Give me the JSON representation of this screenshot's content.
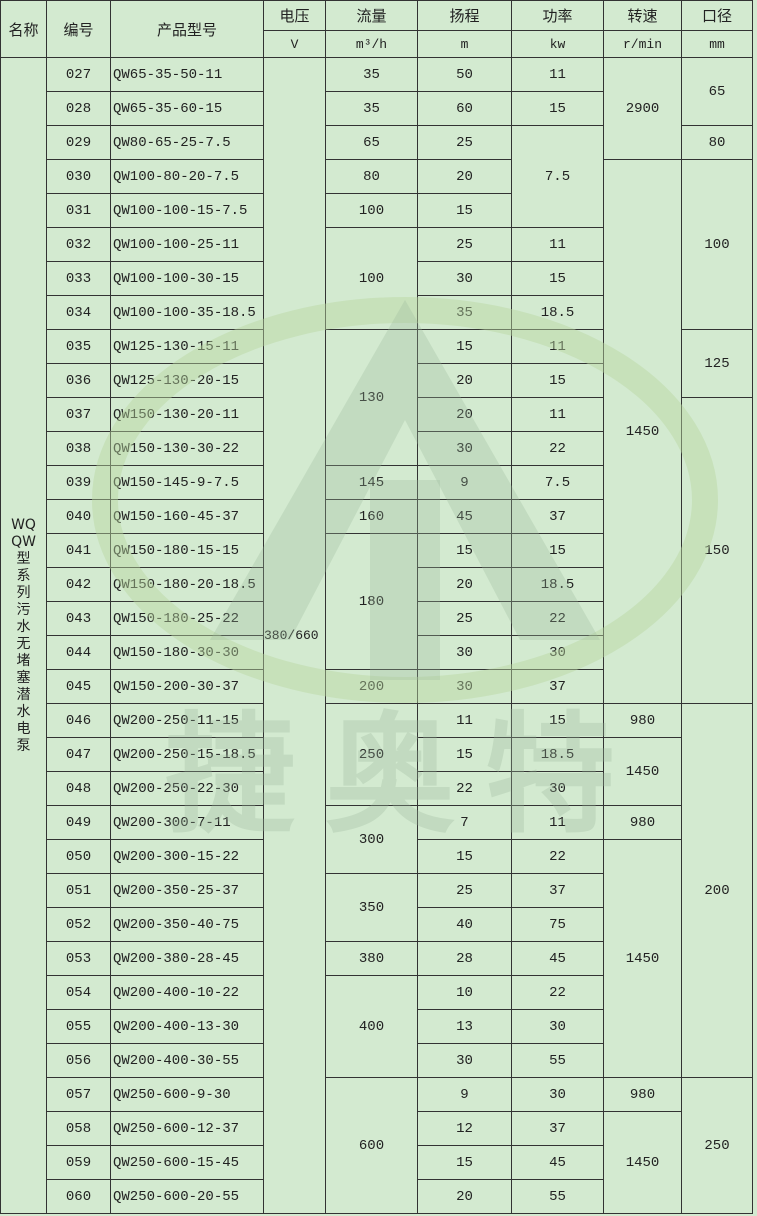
{
  "headers": {
    "name": "名称",
    "no": "编号",
    "model": "产品型号",
    "voltage": "电压",
    "flow": "流量",
    "head": "扬程",
    "power": "功率",
    "speed": "转速",
    "diameter": "口径"
  },
  "units": {
    "voltage": "V",
    "flow": "m³/h",
    "head": "m",
    "power": "kw",
    "speed": "r/min",
    "diameter": "mm"
  },
  "series_name": [
    "WQ",
    "QW",
    "型",
    "系",
    "列",
    "污",
    "水",
    "无",
    "堵",
    "塞",
    "潜",
    "水",
    "电",
    "泵"
  ],
  "voltage": "380/660",
  "watermark": {
    "text": "捷奥特",
    "color": "#9fbf9f",
    "accent": "#c8e6a0"
  },
  "rows": [
    {
      "no": "027",
      "model": "QW65-35-50-11",
      "head": "50"
    },
    {
      "no": "028",
      "model": "QW65-35-60-15",
      "head": "60"
    },
    {
      "no": "029",
      "model": "QW80-65-25-7.5",
      "head": "25"
    },
    {
      "no": "030",
      "model": "QW100-80-20-7.5",
      "head": "20"
    },
    {
      "no": "031",
      "model": "QW100-100-15-7.5",
      "head": "15"
    },
    {
      "no": "032",
      "model": "QW100-100-25-11",
      "head": "25"
    },
    {
      "no": "033",
      "model": "QW100-100-30-15",
      "head": "30"
    },
    {
      "no": "034",
      "model": "QW100-100-35-18.5",
      "head": "35"
    },
    {
      "no": "035",
      "model": "QW125-130-15-11",
      "head": "15"
    },
    {
      "no": "036",
      "model": "QW125-130-20-15",
      "head": "20"
    },
    {
      "no": "037",
      "model": "QW150-130-20-11",
      "head": "20"
    },
    {
      "no": "038",
      "model": "QW150-130-30-22",
      "head": "30"
    },
    {
      "no": "039",
      "model": "QW150-145-9-7.5",
      "head": "9"
    },
    {
      "no": "040",
      "model": "QW150-160-45-37",
      "head": "45"
    },
    {
      "no": "041",
      "model": "QW150-180-15-15",
      "head": "15"
    },
    {
      "no": "042",
      "model": "QW150-180-20-18.5",
      "head": "20"
    },
    {
      "no": "043",
      "model": "QW150-180-25-22",
      "head": "25"
    },
    {
      "no": "044",
      "model": "QW150-180-30-30",
      "head": "30"
    },
    {
      "no": "045",
      "model": "QW150-200-30-37",
      "head": "30"
    },
    {
      "no": "046",
      "model": "QW200-250-11-15",
      "head": "11"
    },
    {
      "no": "047",
      "model": "QW200-250-15-18.5",
      "head": "15"
    },
    {
      "no": "048",
      "model": "QW200-250-22-30",
      "head": "22"
    },
    {
      "no": "049",
      "model": "QW200-300-7-11",
      "head": "7"
    },
    {
      "no": "050",
      "model": "QW200-300-15-22",
      "head": "15"
    },
    {
      "no": "051",
      "model": "QW200-350-25-37",
      "head": "25"
    },
    {
      "no": "052",
      "model": "QW200-350-40-75",
      "head": "40"
    },
    {
      "no": "053",
      "model": "QW200-380-28-45",
      "head": "28"
    },
    {
      "no": "054",
      "model": "QW200-400-10-22",
      "head": "10"
    },
    {
      "no": "055",
      "model": "QW200-400-13-30",
      "head": "13"
    },
    {
      "no": "056",
      "model": "QW200-400-30-55",
      "head": "30"
    },
    {
      "no": "057",
      "model": "QW250-600-9-30",
      "head": "9"
    },
    {
      "no": "058",
      "model": "QW250-600-12-37",
      "head": "12"
    },
    {
      "no": "059",
      "model": "QW250-600-15-45",
      "head": "15"
    },
    {
      "no": "060",
      "model": "QW250-600-20-55",
      "head": "20"
    }
  ],
  "flow": [
    {
      "v": "35",
      "span": 1
    },
    {
      "v": "35",
      "span": 1
    },
    {
      "v": "65",
      "span": 1
    },
    {
      "v": "80",
      "span": 1
    },
    {
      "v": "100",
      "span": 1
    },
    {
      "v": "100",
      "span": 3
    },
    {
      "v": "130",
      "span": 4
    },
    {
      "v": "145",
      "span": 1
    },
    {
      "v": "160",
      "span": 1
    },
    {
      "v": "180",
      "span": 4
    },
    {
      "v": "200",
      "span": 1
    },
    {
      "v": "250",
      "span": 3
    },
    {
      "v": "300",
      "span": 2
    },
    {
      "v": "350",
      "span": 2
    },
    {
      "v": "380",
      "span": 1
    },
    {
      "v": "400",
      "span": 3
    },
    {
      "v": "600",
      "span": 4
    }
  ],
  "power": [
    {
      "v": "11",
      "span": 1
    },
    {
      "v": "15",
      "span": 1
    },
    {
      "v": "7.5",
      "span": 3
    },
    {
      "v": "11",
      "span": 1
    },
    {
      "v": "15",
      "span": 1
    },
    {
      "v": "18.5",
      "span": 1
    },
    {
      "v": "11",
      "span": 1
    },
    {
      "v": "15",
      "span": 1
    },
    {
      "v": "11",
      "span": 1
    },
    {
      "v": "22",
      "span": 1
    },
    {
      "v": "7.5",
      "span": 1
    },
    {
      "v": "37",
      "span": 1
    },
    {
      "v": "15",
      "span": 1
    },
    {
      "v": "18.5",
      "span": 1
    },
    {
      "v": "22",
      "span": 1
    },
    {
      "v": "30",
      "span": 1
    },
    {
      "v": "37",
      "span": 1
    },
    {
      "v": "15",
      "span": 1
    },
    {
      "v": "18.5",
      "span": 1
    },
    {
      "v": "30",
      "span": 1
    },
    {
      "v": "11",
      "span": 1
    },
    {
      "v": "22",
      "span": 1
    },
    {
      "v": "37",
      "span": 1
    },
    {
      "v": "75",
      "span": 1
    },
    {
      "v": "45",
      "span": 1
    },
    {
      "v": "22",
      "span": 1
    },
    {
      "v": "30",
      "span": 1
    },
    {
      "v": "55",
      "span": 1
    },
    {
      "v": "30",
      "span": 1
    },
    {
      "v": "37",
      "span": 1
    },
    {
      "v": "45",
      "span": 1
    },
    {
      "v": "55",
      "span": 1
    }
  ],
  "speed": [
    {
      "v": "2900",
      "span": 3
    },
    {
      "v": "1450",
      "span": 16
    },
    {
      "v": "980",
      "span": 1
    },
    {
      "v": "1450",
      "span": 2
    },
    {
      "v": "980",
      "span": 1
    },
    {
      "v": "1450",
      "span": 7
    },
    {
      "v": "980",
      "span": 1
    },
    {
      "v": "1450",
      "span": 3
    }
  ],
  "diameter": [
    {
      "v": "65",
      "span": 2
    },
    {
      "v": "80",
      "span": 1
    },
    {
      "v": "100",
      "span": 5
    },
    {
      "v": "125",
      "span": 2
    },
    {
      "v": "150",
      "span": 9
    },
    {
      "v": "200",
      "span": 11
    },
    {
      "v": "250",
      "span": 4
    }
  ]
}
